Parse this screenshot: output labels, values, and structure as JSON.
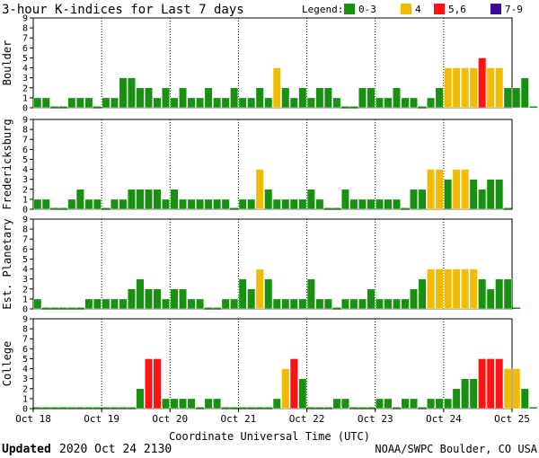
{
  "title": "3-hour K-indices for Last 7 days",
  "legend": {
    "label": "Legend:",
    "items": [
      {
        "label": "0-3",
        "color": "#17910f"
      },
      {
        "label": "4",
        "color": "#f0bb00"
      },
      {
        "label": "5,6",
        "color": "#ff1212"
      },
      {
        "label": "7-9",
        "color": "#3c0e96"
      }
    ]
  },
  "xlabel": "Coordinate Universal Time (UTC)",
  "x_ticks": [
    "Oct 18",
    "Oct 19",
    "Oct 20",
    "Oct 21",
    "Oct 22",
    "Oct 23",
    "Oct 24",
    "Oct 25"
  ],
  "footer": {
    "updated_label": "Updated",
    "updated_value": "2020 Oct 24 2130",
    "source": "NOAA/SWPC Boulder, CO USA"
  },
  "chart_data": [
    {
      "type": "bar",
      "title": "Boulder",
      "ylabel": "Boulder",
      "ylim": [
        0,
        9
      ],
      "y_ticks": [
        0,
        1,
        2,
        3,
        4,
        5,
        6,
        7,
        8,
        9
      ],
      "x_range": [
        "Oct 18",
        "Oct 25"
      ],
      "interval_hours": 3,
      "values": [
        1,
        1,
        0,
        0,
        1,
        1,
        1,
        0,
        1,
        1,
        3,
        3,
        2,
        2,
        1,
        2,
        1,
        2,
        1,
        1,
        2,
        1,
        1,
        2,
        1,
        1,
        2,
        1,
        4,
        2,
        1,
        2,
        1,
        2,
        2,
        1,
        0,
        0,
        2,
        2,
        1,
        1,
        2,
        1,
        1,
        0,
        1,
        2,
        4,
        4,
        4,
        4,
        5,
        4,
        4,
        2,
        2,
        3,
        0
      ]
    },
    {
      "type": "bar",
      "title": "Fredericksburg",
      "ylabel": "Fredericksburg",
      "ylim": [
        0,
        9
      ],
      "y_ticks": [
        0,
        1,
        2,
        3,
        4,
        5,
        6,
        7,
        8,
        9
      ],
      "x_range": [
        "Oct 18",
        "Oct 25"
      ],
      "interval_hours": 3,
      "values": [
        1,
        1,
        0,
        0,
        1,
        2,
        1,
        1,
        0,
        1,
        1,
        2,
        2,
        2,
        2,
        1,
        2,
        1,
        1,
        1,
        1,
        1,
        1,
        0,
        1,
        1,
        4,
        2,
        1,
        1,
        1,
        1,
        2,
        1,
        0,
        0,
        2,
        1,
        1,
        1,
        1,
        1,
        1,
        0,
        2,
        2,
        4,
        4,
        3,
        4,
        4,
        3,
        2,
        3,
        3,
        0
      ]
    },
    {
      "type": "bar",
      "title": "Est. Planetary",
      "ylabel": "Est. Planetary",
      "ylim": [
        0,
        9
      ],
      "y_ticks": [
        0,
        1,
        2,
        3,
        4,
        5,
        6,
        7,
        8,
        9
      ],
      "x_range": [
        "Oct 18",
        "Oct 25"
      ],
      "interval_hours": 3,
      "values": [
        1,
        0,
        0,
        0,
        0,
        0,
        1,
        1,
        1,
        1,
        1,
        2,
        3,
        2,
        2,
        1,
        2,
        2,
        1,
        1,
        0,
        0,
        1,
        1,
        3,
        2,
        4,
        3,
        1,
        1,
        1,
        1,
        3,
        1,
        1,
        0,
        1,
        1,
        1,
        2,
        1,
        1,
        1,
        1,
        2,
        3,
        4,
        4,
        4,
        4,
        4,
        4,
        3,
        2,
        3,
        3,
        0
      ]
    },
    {
      "type": "bar",
      "title": "College",
      "ylabel": "College",
      "ylim": [
        0,
        9
      ],
      "y_ticks": [
        0,
        1,
        2,
        3,
        4,
        5,
        6,
        7,
        8,
        9
      ],
      "x_range": [
        "Oct 18",
        "Oct 25"
      ],
      "interval_hours": 3,
      "values": [
        0,
        0,
        0,
        0,
        0,
        0,
        0,
        0,
        0,
        0,
        0,
        0,
        2,
        5,
        5,
        1,
        1,
        1,
        1,
        0,
        1,
        1,
        0,
        0,
        0,
        0,
        0,
        0,
        1,
        4,
        5,
        3,
        0,
        0,
        0,
        1,
        1,
        0,
        0,
        0,
        1,
        1,
        0,
        1,
        1,
        0,
        1,
        1,
        1,
        2,
        3,
        3,
        5,
        5,
        5,
        4,
        4,
        2,
        0
      ]
    }
  ]
}
